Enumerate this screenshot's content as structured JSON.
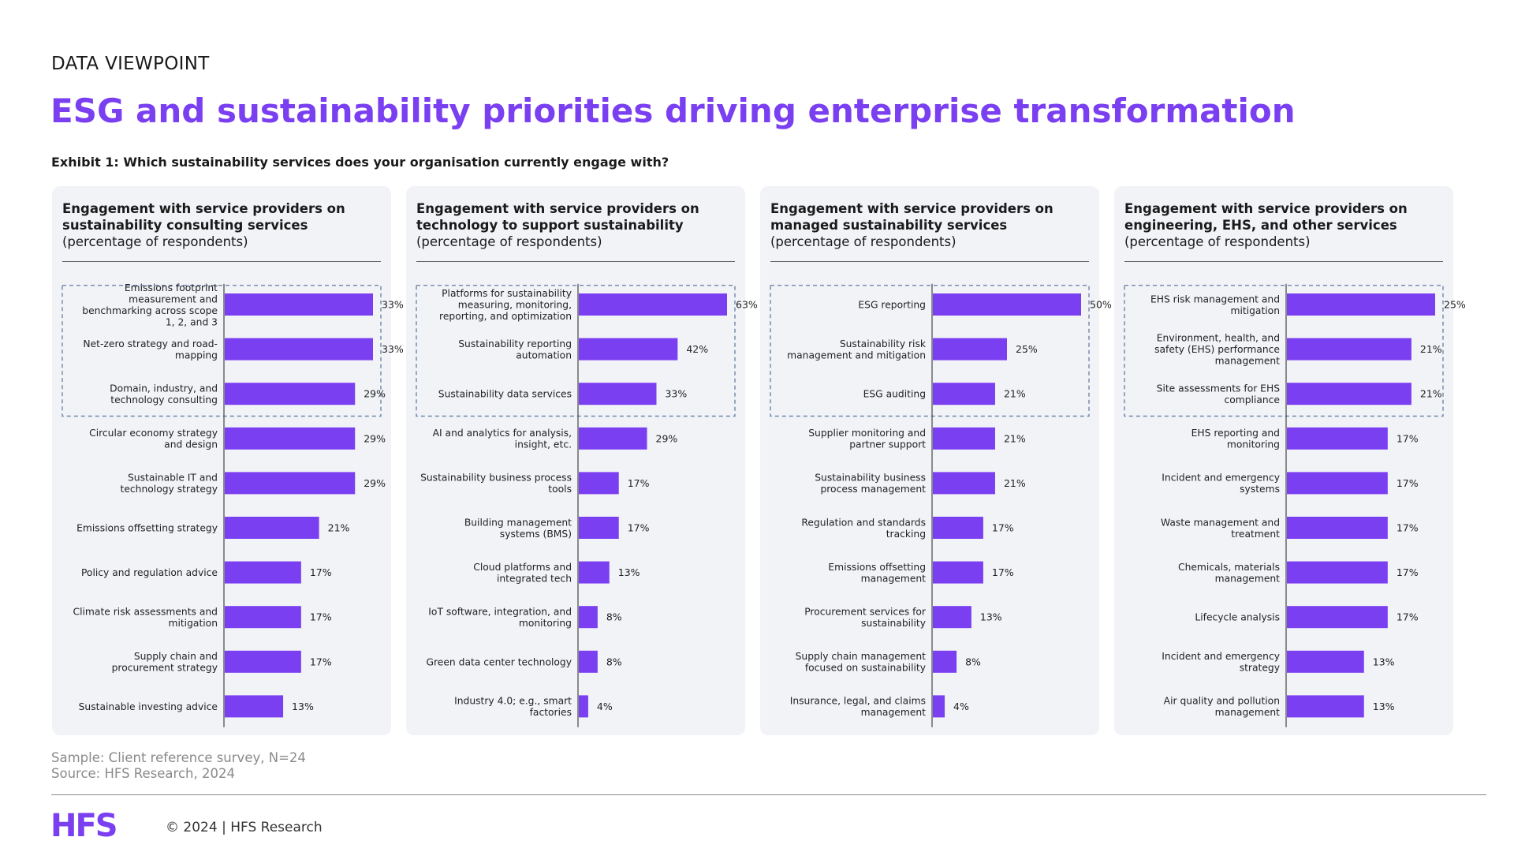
{
  "header": {
    "eyebrow": "DATA VIEWPOINT",
    "title": "ESG and sustainability priorities driving enterprise transformation",
    "exhibit": "Exhibit 1: Which sustainability services does your organisation currently engage with?"
  },
  "colors": {
    "accent": "#7B3FF2",
    "bar": "#7B3FF2",
    "panel_bg": "#F1F3F7",
    "highlight_border": "#6F86A8"
  },
  "chart_data": [
    {
      "type": "bar",
      "orientation": "horizontal",
      "title": "Engagement with service providers on sustainability consulting services",
      "subtitle": "(percentage of respondents)",
      "highlighted_top": 3,
      "categories": [
        "Emissions footprint measurement and benchmarking across scope 1, 2, and 3",
        "Net-zero strategy and road-mapping",
        "Domain, industry, and technology consulting",
        "Circular economy strategy and design",
        "Sustainable IT and technology strategy",
        "Emissions offsetting strategy",
        "Policy and regulation advice",
        "Climate risk assessments and mitigation",
        "Supply chain and procurement strategy",
        "Sustainable investing advice"
      ],
      "labels_lines": [
        [
          "Emissions footprint",
          "measurement and",
          "benchmarking across scope",
          "1, 2, and 3"
        ],
        [
          "Net-zero strategy and road-",
          "mapping"
        ],
        [
          "Domain, industry, and",
          "technology consulting"
        ],
        [
          "Circular economy strategy",
          "and design"
        ],
        [
          "Sustainable IT and",
          "technology strategy"
        ],
        [
          "Emissions offsetting strategy"
        ],
        [
          "Policy and regulation advice"
        ],
        [
          "Climate risk assessments and",
          "mitigation"
        ],
        [
          "Supply chain and",
          "procurement strategy"
        ],
        [
          "Sustainable investing advice"
        ]
      ],
      "values": [
        33,
        33,
        29,
        29,
        29,
        21,
        17,
        17,
        17,
        13
      ],
      "value_labels": [
        "33%",
        "33%",
        "29%",
        "29%",
        "29%",
        "21%",
        "17%",
        "17%",
        "17%",
        "13%"
      ]
    },
    {
      "type": "bar",
      "orientation": "horizontal",
      "title": "Engagement with service providers on technology to support sustainability",
      "subtitle": "(percentage of respondents)",
      "highlighted_top": 3,
      "categories": [
        "Platforms for sustainability measuring, monitoring, reporting, and optimization",
        "Sustainability reporting automation",
        "Sustainability data services",
        "AI and analytics for analysis, insight, etc.",
        "Sustainability business process tools",
        "Building management systems (BMS)",
        "Cloud platforms and integrated tech",
        "IoT software, integration, and monitoring",
        "Green data center technology",
        "Industry 4.0; e.g., smart factories"
      ],
      "labels_lines": [
        [
          "Platforms for sustainability",
          "measuring, monitoring,",
          "reporting, and optimization"
        ],
        [
          "Sustainability reporting",
          "automation"
        ],
        [
          "Sustainability data services"
        ],
        [
          "AI and analytics for analysis,",
          "insight, etc."
        ],
        [
          "Sustainability business process",
          "tools"
        ],
        [
          "Building management",
          "systems (BMS)"
        ],
        [
          "Cloud platforms and",
          "integrated tech"
        ],
        [
          "IoT software, integration, and",
          "monitoring"
        ],
        [
          "Green data center technology"
        ],
        [
          "Industry 4.0; e.g., smart",
          "factories"
        ]
      ],
      "values": [
        63,
        42,
        33,
        29,
        17,
        17,
        13,
        8,
        8,
        4
      ],
      "value_labels": [
        "63%",
        "42%",
        "33%",
        "29%",
        "17%",
        "17%",
        "13%",
        "8%",
        "8%",
        "4%"
      ]
    },
    {
      "type": "bar",
      "orientation": "horizontal",
      "title": "Engagement with service providers on managed sustainability services",
      "subtitle": "(percentage of respondents)",
      "highlighted_top": 3,
      "categories": [
        "ESG reporting",
        "Sustainability risk management and mitigation",
        "ESG auditing",
        "Supplier monitoring and partner support",
        "Sustainability business process management",
        "Regulation and standards tracking",
        "Emissions offsetting management",
        "Procurement services for sustainability",
        "Supply chain management focused on sustainability",
        "Insurance, legal, and claims management"
      ],
      "labels_lines": [
        [
          "ESG reporting"
        ],
        [
          "Sustainability risk",
          "management and mitigation"
        ],
        [
          "ESG auditing"
        ],
        [
          "Supplier monitoring and",
          "partner support"
        ],
        [
          "Sustainability business",
          "process management"
        ],
        [
          "Regulation and standards",
          "tracking"
        ],
        [
          "Emissions offsetting",
          "management"
        ],
        [
          "Procurement services for",
          "sustainability"
        ],
        [
          "Supply chain management",
          "focused on sustainability"
        ],
        [
          "Insurance, legal, and claims",
          "management"
        ]
      ],
      "values": [
        50,
        25,
        21,
        21,
        21,
        17,
        17,
        13,
        8,
        4
      ],
      "value_labels": [
        "50%",
        "25%",
        "21%",
        "21%",
        "21%",
        "17%",
        "17%",
        "13%",
        "8%",
        "4%"
      ]
    },
    {
      "type": "bar",
      "orientation": "horizontal",
      "title": "Engagement with service providers on engineering, EHS, and other services",
      "subtitle": "(percentage of respondents)",
      "highlighted_top": 3,
      "categories": [
        "EHS risk management and mitigation",
        "Environment, health, and safety (EHS) performance management",
        "Site assessments for EHS compliance",
        "EHS reporting and monitoring",
        "Incident and emergency systems",
        "Waste management and treatment",
        "Chemicals, materials management",
        "Lifecycle analysis",
        "Incident and emergency strategy",
        "Air quality and pollution management"
      ],
      "labels_lines": [
        [
          "EHS risk management and",
          "mitigation"
        ],
        [
          "Environment, health, and",
          "safety (EHS) performance",
          "management"
        ],
        [
          "Site assessments for EHS",
          "compliance"
        ],
        [
          "EHS reporting and",
          "monitoring"
        ],
        [
          "Incident and emergency",
          "systems"
        ],
        [
          "Waste management and",
          "treatment"
        ],
        [
          "Chemicals, materials",
          "management"
        ],
        [
          "Lifecycle analysis"
        ],
        [
          "Incident and emergency",
          "strategy"
        ],
        [
          "Air quality and pollution",
          "management"
        ]
      ],
      "values": [
        25,
        21,
        21,
        17,
        17,
        17,
        17,
        17,
        13,
        13
      ],
      "value_labels": [
        "25%",
        "21%",
        "21%",
        "17%",
        "17%",
        "17%",
        "17%",
        "17%",
        "13%",
        "13%"
      ]
    }
  ],
  "footer": {
    "sample": "Sample: Client reference survey, N=24",
    "source": "Source: HFS Research, 2024",
    "logo_text": "HFS",
    "copyright": "© 2024 | HFS Research"
  }
}
